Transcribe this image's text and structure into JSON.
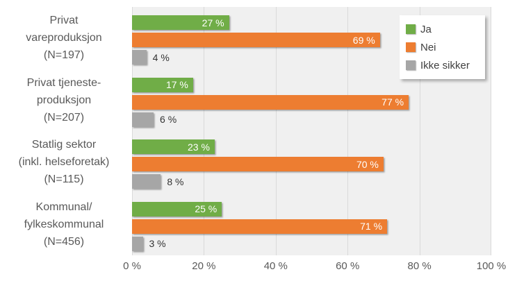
{
  "chart_data": {
    "type": "bar",
    "orientation": "horizontal",
    "title": "",
    "categories": [
      "Privat vareproduksjon (N=197)",
      "Privat tjeneste-produksjon (N=207)",
      "Statlig sektor (inkl. helseforetak) (N=115)",
      "Kommunal/fylkeskommunal (N=456)"
    ],
    "category_lines": [
      [
        "Privat",
        "vareproduksjon",
        "(N=197)"
      ],
      [
        "Privat tjeneste-",
        "produksjon",
        "(N=207)"
      ],
      [
        "Statlig sektor",
        "(inkl. helseforetak)",
        "(N=115)"
      ],
      [
        "Kommunal/",
        "fylkeskommunal",
        "(N=456)"
      ]
    ],
    "series": [
      {
        "name": "Ja",
        "color": "#70AD47",
        "values": [
          27,
          17,
          23,
          25
        ]
      },
      {
        "name": "Nei",
        "color": "#ED7D31",
        "values": [
          69,
          77,
          70,
          71
        ]
      },
      {
        "name": "Ikke sikker",
        "color": "#A6A6A6",
        "values": [
          4,
          6,
          8,
          3
        ]
      }
    ],
    "value_suffix": " %",
    "xlim": [
      0,
      100
    ],
    "x_ticks": [
      "0 %",
      "20 %",
      "40 %",
      "60 %",
      "80 %",
      "100 %"
    ],
    "grid": true,
    "legend_position": "top-right",
    "plot_background": "#F0F0F0",
    "gridline_color": "#D9D9D9",
    "axis_text_color": "#595959",
    "inside_label_color": "#FFFFFF",
    "outside_label_color": "#333333",
    "inside_label_min_value": 12
  }
}
